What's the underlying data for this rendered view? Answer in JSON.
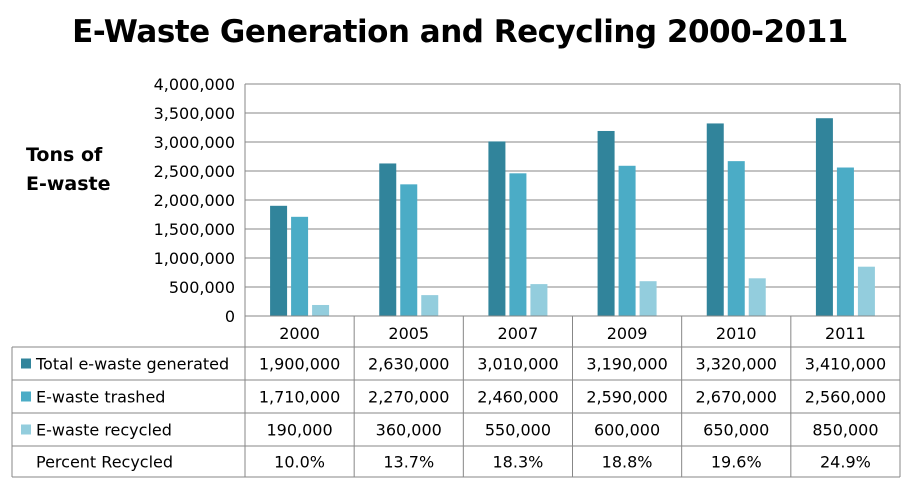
{
  "chart_data": {
    "type": "bar",
    "title": "E-Waste Generation and Recycling 2000-2011",
    "ylabel_line1": "Tons of",
    "ylabel_line2": "E-waste",
    "categories": [
      "2000",
      "2005",
      "2007",
      "2009",
      "2010",
      "2011"
    ],
    "ylim": [
      0,
      4000000
    ],
    "yticks": [
      "0",
      "500,000",
      "1,000,000",
      "1,500,000",
      "2,000,000",
      "2,500,000",
      "3,000,000",
      "3,500,000",
      "4,000,000"
    ],
    "grid": true,
    "legend": "data-table",
    "series": [
      {
        "name": "Total e-waste generated",
        "color": "#31849B",
        "values": [
          1900000,
          2630000,
          3010000,
          3190000,
          3320000,
          3410000
        ],
        "labels": [
          "1,900,000",
          "2,630,000",
          "3,010,000",
          "3,190,000",
          "3,320,000",
          "3,410,000"
        ]
      },
      {
        "name": "E-waste trashed",
        "color": "#4BACC6",
        "values": [
          1710000,
          2270000,
          2460000,
          2590000,
          2670000,
          2560000
        ],
        "labels": [
          "1,710,000",
          "2,270,000",
          "2,460,000",
          "2,590,000",
          "2,670,000",
          "2,560,000"
        ]
      },
      {
        "name": "E-waste recycled",
        "color": "#93CDDD",
        "values": [
          190000,
          360000,
          550000,
          600000,
          650000,
          850000
        ],
        "labels": [
          "190,000",
          "360,000",
          "550,000",
          "600,000",
          "650,000",
          "850,000"
        ]
      }
    ],
    "table_extra_row": {
      "name": "Percent Recycled",
      "labels": [
        "10.0%",
        "13.7%",
        "18.3%",
        "18.8%",
        "19.6%",
        "24.9%"
      ]
    }
  }
}
